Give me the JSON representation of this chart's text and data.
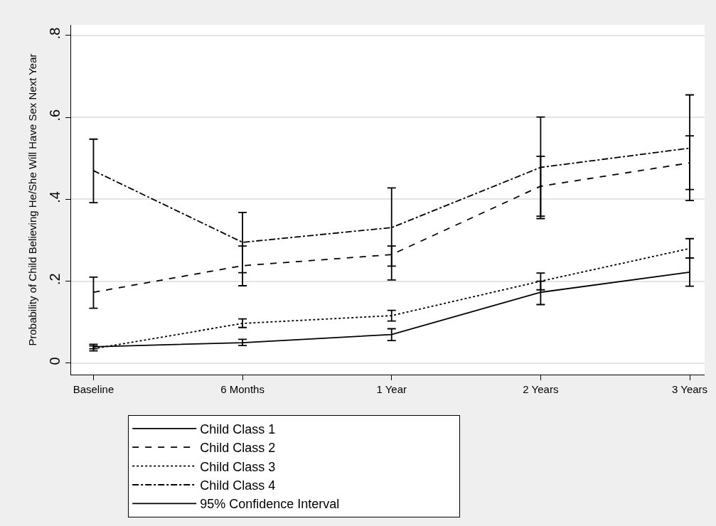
{
  "chart_data": {
    "type": "line",
    "ylabel": "Probability of Child Believing He/She Will Have Sex Next Year",
    "categories": [
      "Baseline",
      "6 Months",
      "1 Year",
      "2 Years",
      "3 Years"
    ],
    "series": [
      {
        "name": "Child Class 1",
        "color": "#000000",
        "line_style": "solid",
        "values": [
          0.04,
          0.05,
          0.07,
          0.173,
          0.222
        ],
        "errors": [
          [
            0.035,
            0.046
          ],
          [
            0.043,
            0.058
          ],
          [
            0.055,
            0.084
          ],
          [
            0.143,
            0.2
          ],
          [
            0.188,
            0.257
          ]
        ]
      },
      {
        "name": "Child Class 2",
        "color": "#000000",
        "line_style": "dashed",
        "values": [
          0.173,
          0.238,
          0.265,
          0.432,
          0.489
        ],
        "errors": [
          [
            0.134,
            0.21
          ],
          [
            0.189,
            0.286
          ],
          [
            0.203,
            0.286
          ],
          [
            0.353,
            0.505
          ],
          [
            0.424,
            0.555
          ]
        ]
      },
      {
        "name": "Child Class 3",
        "color": "#000000",
        "line_style": "dotted",
        "values": [
          0.035,
          0.097,
          0.116,
          0.2,
          0.28
        ],
        "errors": [
          [
            0.03,
            0.042
          ],
          [
            0.087,
            0.108
          ],
          [
            0.103,
            0.129
          ],
          [
            0.179,
            0.22
          ],
          [
            0.257,
            0.304
          ]
        ]
      },
      {
        "name": "Child Class 4",
        "color": "#000000",
        "line_style": "dashdot",
        "values": [
          0.47,
          0.295,
          0.331,
          0.478,
          0.525
        ],
        "errors": [
          [
            0.392,
            0.547
          ],
          [
            0.221,
            0.368
          ],
          [
            0.237,
            0.428
          ],
          [
            0.359,
            0.601
          ],
          [
            0.397,
            0.655
          ]
        ]
      }
    ],
    "annotations": [
      "95% Confidence Interval"
    ],
    "ylim": [
      -0.028,
      0.826
    ],
    "yticks": [
      {
        "value": 0,
        "label": "0"
      },
      {
        "value": 0.2,
        "label": ".2"
      },
      {
        "value": 0.4,
        "label": ".4"
      },
      {
        "value": 0.6,
        "label": ".6"
      },
      {
        "value": 0.8,
        "label": ".8"
      }
    ],
    "grid": "y",
    "legend": "bottom",
    "marker": "none"
  }
}
